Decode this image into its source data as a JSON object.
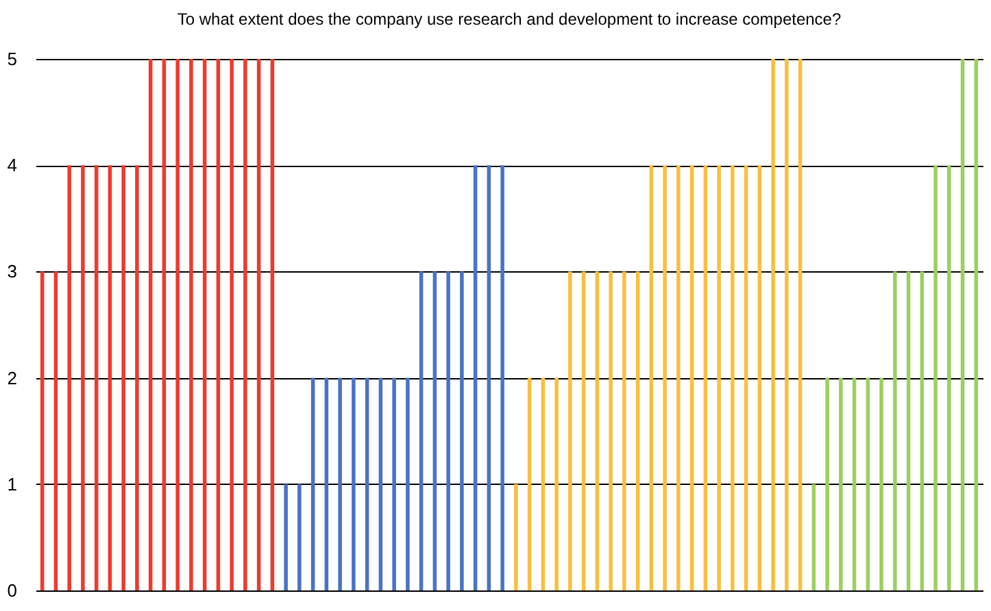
{
  "chart_data": {
    "type": "bar",
    "title": "To what extent does the company use research and development to increase competence?",
    "categories": [
      null,
      null,
      null,
      null,
      null,
      null,
      null,
      null,
      null,
      null,
      null,
      null,
      null,
      null,
      null,
      null,
      null,
      null,
      null,
      null,
      null,
      null,
      null,
      null,
      null,
      null,
      null,
      null,
      null,
      null,
      null,
      null,
      null,
      null,
      null,
      null,
      null,
      null,
      null,
      null,
      null,
      null,
      null,
      null,
      null,
      null,
      null,
      null,
      null,
      null,
      null,
      null,
      null,
      null,
      null,
      null,
      null,
      null,
      null,
      null,
      null,
      null,
      null,
      null,
      null,
      null,
      null,
      null,
      null,
      null
    ],
    "values": [
      3,
      3,
      4,
      4,
      4,
      4,
      4,
      4,
      5,
      5,
      5,
      5,
      5,
      5,
      5,
      5,
      5,
      5,
      1,
      1,
      2,
      2,
      2,
      2,
      2,
      2,
      2,
      2,
      3,
      3,
      3,
      3,
      4,
      4,
      4,
      1,
      2,
      2,
      2,
      3,
      3,
      3,
      3,
      3,
      3,
      4,
      4,
      4,
      4,
      4,
      4,
      4,
      4,
      4,
      5,
      5,
      5,
      1,
      2,
      2,
      2,
      2,
      2,
      3,
      3,
      3,
      4,
      4,
      5,
      5
    ],
    "colors": [
      "#ee3a2c",
      "#ee3a2c",
      "#ee3a2c",
      "#ee3a2c",
      "#ee3a2c",
      "#ee3a2c",
      "#ee3a2c",
      "#ee3a2c",
      "#ee3a2c",
      "#ee3a2c",
      "#ee3a2c",
      "#ee3a2c",
      "#ee3a2c",
      "#ee3a2c",
      "#ee3a2c",
      "#ee3a2c",
      "#ee3a2c",
      "#ee3a2c",
      "#4a72c4",
      "#4a72c4",
      "#4a72c4",
      "#4a72c4",
      "#4a72c4",
      "#4a72c4",
      "#4a72c4",
      "#4a72c4",
      "#4a72c4",
      "#4a72c4",
      "#4a72c4",
      "#4a72c4",
      "#4a72c4",
      "#4a72c4",
      "#4a72c4",
      "#4a72c4",
      "#4a72c4",
      "#f8bf3f",
      "#f8bf3f",
      "#f8bf3f",
      "#f8bf3f",
      "#f8bf3f",
      "#f8bf3f",
      "#f8bf3f",
      "#f8bf3f",
      "#f8bf3f",
      "#f8bf3f",
      "#f8bf3f",
      "#f8bf3f",
      "#f8bf3f",
      "#f8bf3f",
      "#f8bf3f",
      "#f8bf3f",
      "#f8bf3f",
      "#f8bf3f",
      "#f8bf3f",
      "#f8bf3f",
      "#f8bf3f",
      "#f8bf3f",
      "#9ccf5f",
      "#9ccf5f",
      "#9ccf5f",
      "#9ccf5f",
      "#9ccf5f",
      "#9ccf5f",
      "#9ccf5f",
      "#9ccf5f",
      "#9ccf5f",
      "#9ccf5f",
      "#9ccf5f",
      "#9ccf5f",
      "#9ccf5f"
    ],
    "ylim": [
      0,
      5
    ],
    "yticks": [
      0,
      1,
      2,
      3,
      4,
      5
    ],
    "grid": "y",
    "tick_labels": "y"
  }
}
